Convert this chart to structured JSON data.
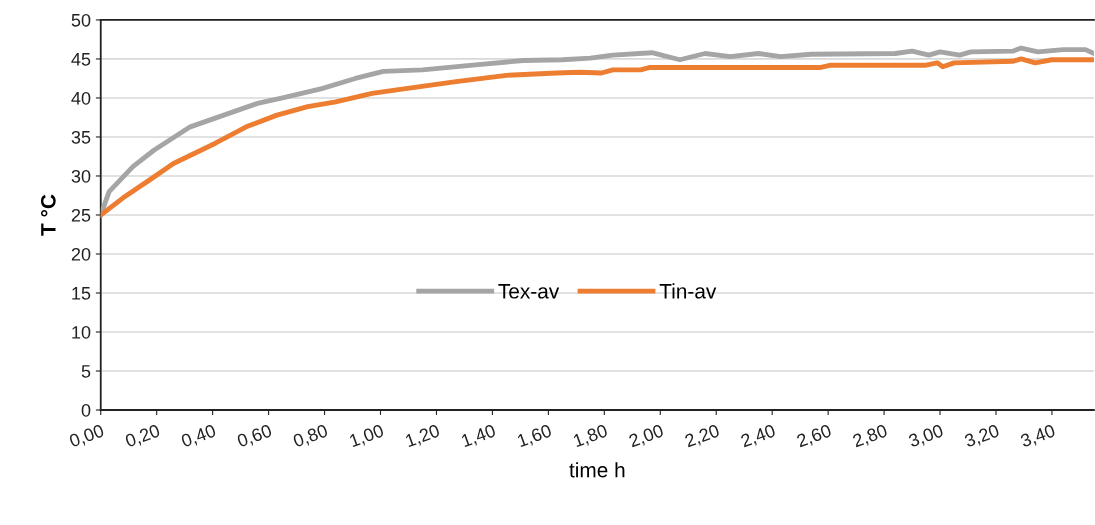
{
  "chart_data": {
    "type": "line",
    "xlabel": "time h",
    "ylabel": "T °C",
    "xlim": [
      0,
      3.55
    ],
    "ylim": [
      0,
      50
    ],
    "xticks": [
      {
        "value": 0,
        "label": "0,00"
      },
      {
        "value": 0.2,
        "label": "0,20"
      },
      {
        "value": 0.4,
        "label": "0,40"
      },
      {
        "value": 0.6,
        "label": "0,60"
      },
      {
        "value": 0.8,
        "label": "0,80"
      },
      {
        "value": 1.0,
        "label": "1,00"
      },
      {
        "value": 1.2,
        "label": "1,20"
      },
      {
        "value": 1.4,
        "label": "1,40"
      },
      {
        "value": 1.6,
        "label": "1,60"
      },
      {
        "value": 1.8,
        "label": "1,80"
      },
      {
        "value": 2.0,
        "label": "2,00"
      },
      {
        "value": 2.2,
        "label": "2,20"
      },
      {
        "value": 2.4,
        "label": "2,40"
      },
      {
        "value": 2.6,
        "label": "2,60"
      },
      {
        "value": 2.8,
        "label": "2,80"
      },
      {
        "value": 3.0,
        "label": "3,00"
      },
      {
        "value": 3.2,
        "label": "3,20"
      },
      {
        "value": 3.4,
        "label": "3,40"
      }
    ],
    "yticks": [
      0,
      5,
      10,
      15,
      20,
      25,
      30,
      35,
      40,
      45,
      50
    ],
    "grid": "y",
    "legend": "center",
    "marker": "none",
    "line_style": "solid",
    "series": [
      {
        "name": "Tex-av",
        "color": "#a5a5a5",
        "x": [
          0,
          0.03,
          0.115,
          0.19,
          0.32,
          0.44,
          0.56,
          0.65,
          0.79,
          0.91,
          1.01,
          1.15,
          1.33,
          1.51,
          1.65,
          1.75,
          1.83,
          1.97,
          2.07,
          2.16,
          2.25,
          2.35,
          2.43,
          2.54,
          2.84,
          2.9,
          2.96,
          3.0,
          3.07,
          3.11,
          3.26,
          3.29,
          3.35,
          3.44,
          3.52,
          3.55
        ],
        "values": [
          25,
          28.0,
          31.2,
          33.3,
          36.3,
          37.8,
          39.3,
          40.0,
          41.2,
          42.5,
          43.4,
          43.6,
          44.2,
          44.8,
          44.9,
          45.1,
          45.5,
          45.8,
          44.9,
          45.7,
          45.3,
          45.7,
          45.3,
          45.6,
          45.7,
          46.0,
          45.5,
          45.9,
          45.5,
          45.9,
          46.0,
          46.4,
          45.9,
          46.2,
          46.2,
          45.7
        ]
      },
      {
        "name": "Tin-av",
        "color": "#ed7d31",
        "x": [
          0,
          0.08,
          0.175,
          0.26,
          0.41,
          0.52,
          0.63,
          0.74,
          0.84,
          0.97,
          1.09,
          1.27,
          1.45,
          1.63,
          1.71,
          1.79,
          1.83,
          1.93,
          1.96,
          2.57,
          2.61,
          2.95,
          2.99,
          3.01,
          3.05,
          3.26,
          3.29,
          3.34,
          3.4,
          3.55
        ],
        "values": [
          25,
          27.2,
          29.5,
          31.6,
          34.2,
          36.3,
          37.8,
          38.9,
          39.5,
          40.6,
          41.2,
          42.1,
          42.9,
          43.2,
          43.3,
          43.2,
          43.6,
          43.6,
          43.9,
          43.9,
          44.2,
          44.2,
          44.5,
          44.0,
          44.5,
          44.7,
          45.0,
          44.5,
          44.9,
          44.9
        ]
      }
    ]
  }
}
